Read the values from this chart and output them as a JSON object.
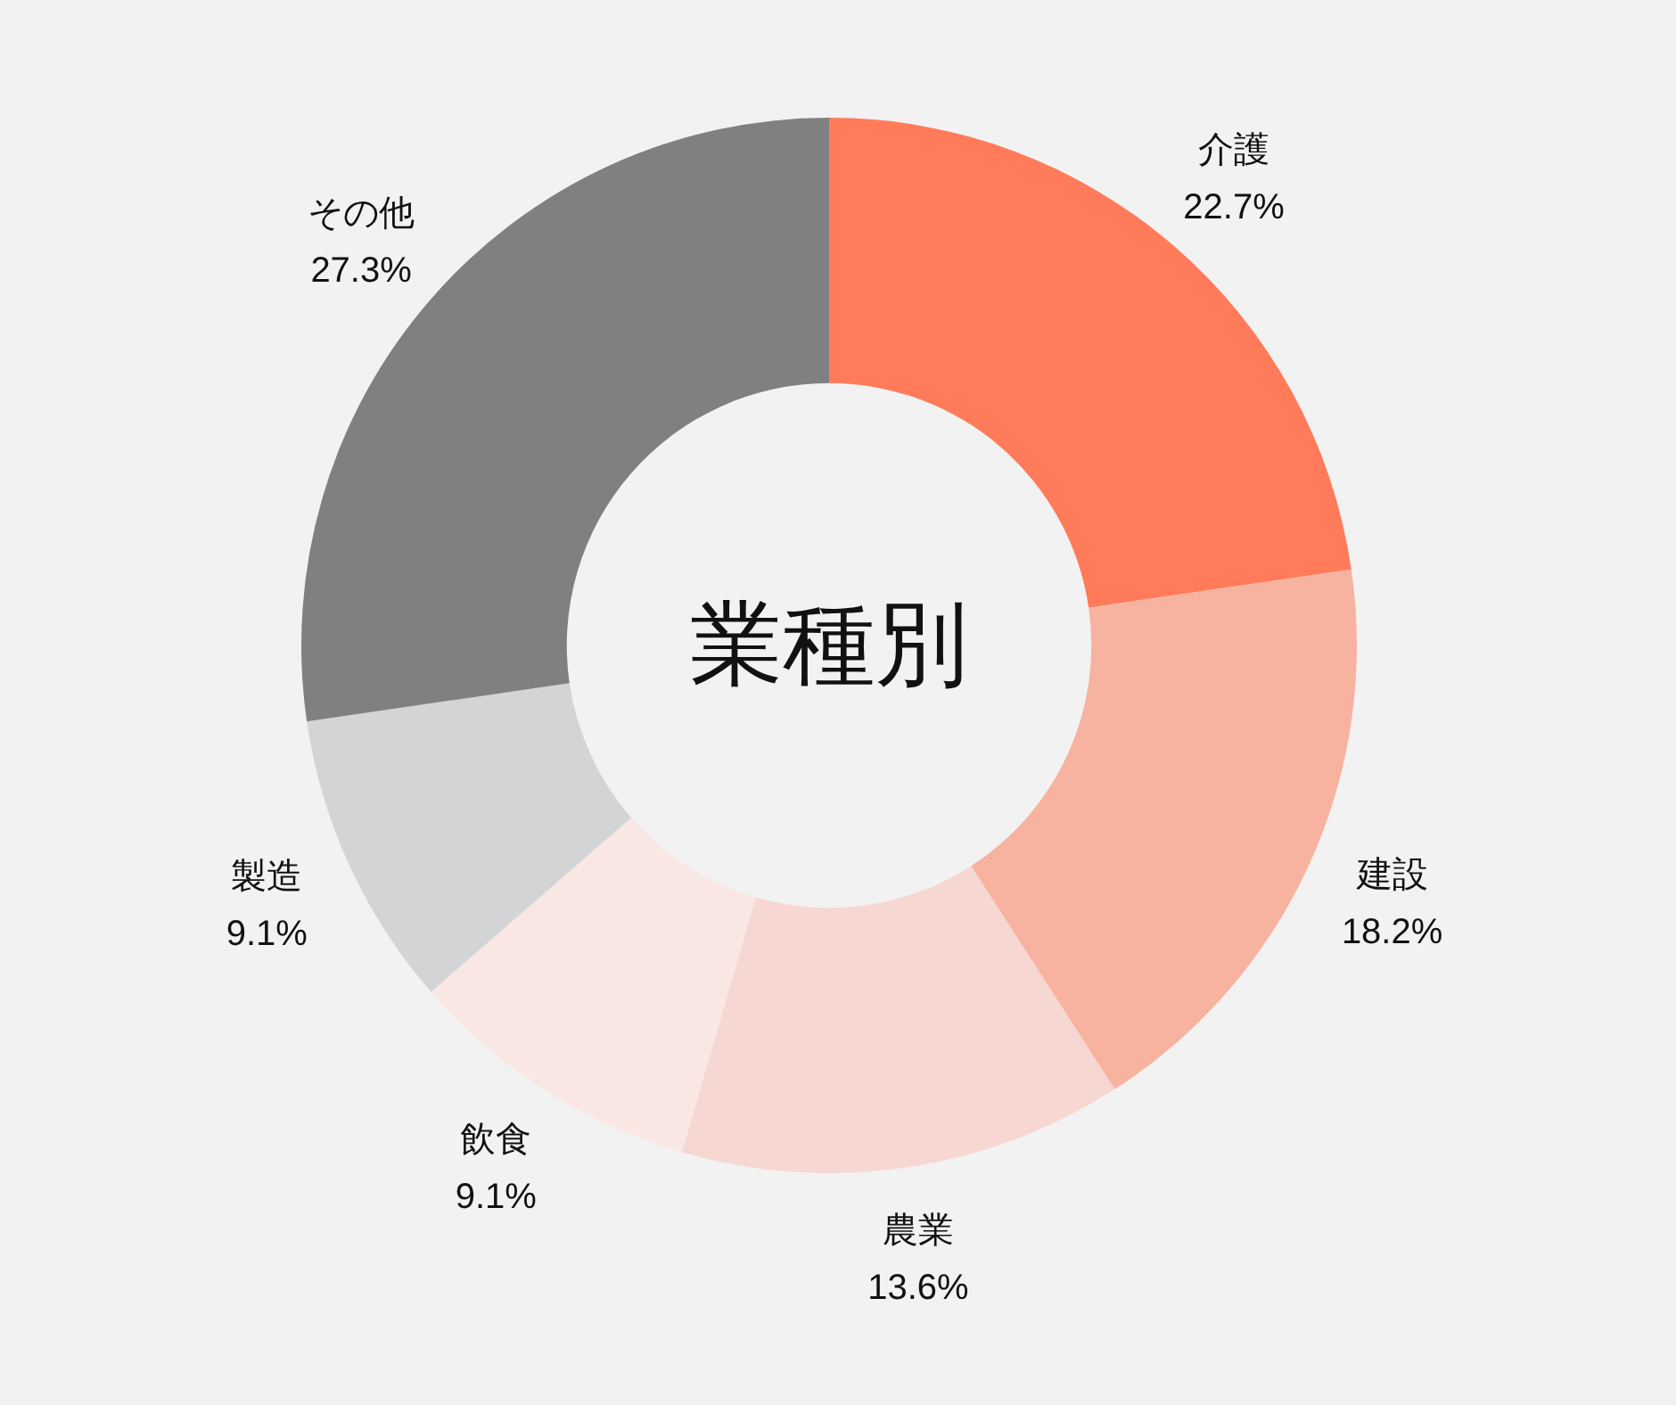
{
  "chart_data": {
    "type": "donut",
    "title": "業種別",
    "categories": [
      "介護",
      "建設",
      "農業",
      "飲食",
      "製造",
      "その他"
    ],
    "values": [
      22.7,
      18.2,
      13.6,
      9.1,
      9.1,
      27.3
    ],
    "value_labels": [
      "22.7%",
      "18.2%",
      "13.6%",
      "9.1%",
      "9.1%",
      "27.3%"
    ],
    "colors": [
      "#ff7b5a",
      "#f8b2a0",
      "#f6d7d1",
      "#f9e7e3",
      "#d3d4d5",
      "#808080"
    ]
  }
}
